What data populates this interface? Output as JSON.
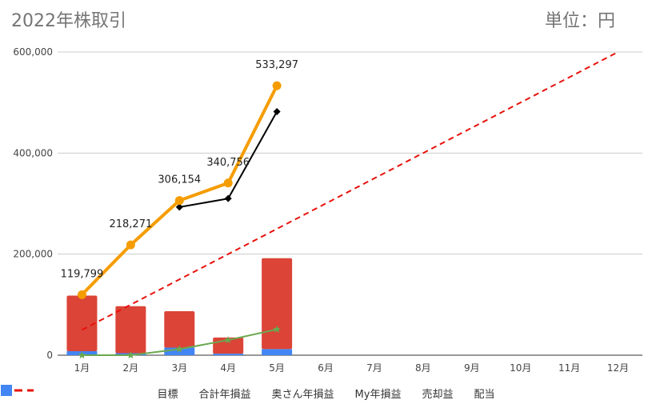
{
  "title": "2022年株取引",
  "unit_label": "単位：円",
  "chart_data": {
    "type": "bar",
    "categories": [
      "1月",
      "2月",
      "3月",
      "4月",
      "5月",
      "6月",
      "7月",
      "8月",
      "9月",
      "10月",
      "11月",
      "12月"
    ],
    "ylim": [
      0,
      600000
    ],
    "yticks": [
      0,
      200000,
      400000,
      600000
    ],
    "ytick_labels": [
      "0",
      "200,000",
      "400,000",
      "600,000"
    ],
    "grid": true,
    "legend_position": "bottom",
    "series": [
      {
        "name": "売却益",
        "kind": "stacked-bar",
        "color": "#db4437",
        "values": [
          110000,
          93000,
          72000,
          32000,
          180000,
          null,
          null,
          null,
          null,
          null,
          null,
          null
        ]
      },
      {
        "name": "配当",
        "kind": "stacked-bar",
        "color": "#4285f4",
        "values": [
          8000,
          4000,
          15000,
          3000,
          12000,
          null,
          null,
          null,
          null,
          null,
          null,
          null
        ]
      },
      {
        "name": "目標",
        "kind": "dashed-line",
        "color": "#e8120c",
        "values": [
          50000,
          100000,
          150000,
          200000,
          250000,
          300000,
          350000,
          400000,
          450000,
          500000,
          550000,
          600000
        ]
      },
      {
        "name": "合計年損益",
        "kind": "line-marker",
        "color": "#f59d00",
        "values": [
          119799,
          218271,
          306154,
          340756,
          533297,
          null,
          null,
          null,
          null,
          null,
          null,
          null
        ],
        "labels": [
          "119,799",
          "218,271",
          "306,154",
          "340,756",
          "533,297"
        ]
      },
      {
        "name": "奥さん年損益",
        "kind": "line-star",
        "color": "#6aa84f",
        "values": [
          0,
          0,
          12000,
          30000,
          51000,
          null,
          null,
          null,
          null,
          null,
          null,
          null
        ]
      },
      {
        "name": "My年損益",
        "kind": "line-diamond",
        "color": "#000000",
        "values": [
          null,
          null,
          293000,
          310000,
          482000,
          null,
          null,
          null,
          null,
          null,
          null,
          null
        ]
      }
    ]
  },
  "legend": [
    {
      "label": "目標",
      "icon": "dashed-line-icon",
      "color": "#e8120c"
    },
    {
      "label": "合計年損益",
      "icon": "circle-icon",
      "color": "#f59d00"
    },
    {
      "label": "奥さん年損益",
      "icon": "star-icon",
      "color": "#6aa84f"
    },
    {
      "label": "My年損益",
      "icon": "diamond-icon",
      "color": "#000000"
    },
    {
      "label": "売却益",
      "icon": "square-icon",
      "color": "#db4437"
    },
    {
      "label": "配当",
      "icon": "square-icon",
      "color": "#4285f4"
    }
  ]
}
